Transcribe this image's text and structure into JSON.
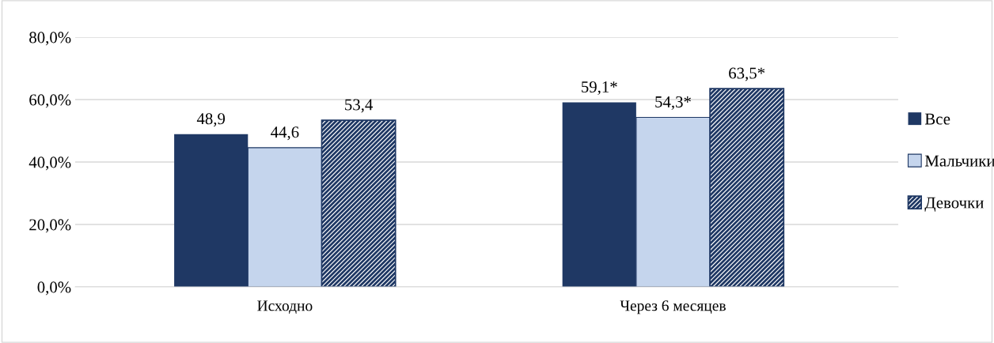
{
  "chart_data": {
    "type": "bar",
    "categories": [
      "Исходно",
      "Через 6 месяцев"
    ],
    "series": [
      {
        "name": "Все",
        "color": "#1f3864",
        "values": [
          48.9,
          59.1
        ],
        "value_labels": [
          "48,9",
          "59,1*"
        ]
      },
      {
        "name": "Мальчики",
        "color": "#c5d5ed",
        "values": [
          44.6,
          54.3
        ],
        "value_labels": [
          "44,6",
          "54,3*"
        ]
      },
      {
        "name": "Девочки",
        "color": "#1f3864",
        "values": [
          53.4,
          63.5
        ],
        "value_labels": [
          "53,4",
          "63,5*"
        ]
      }
    ],
    "ylim": [
      0,
      80
    ],
    "yticks": [
      {
        "value": 0,
        "label": "0,0%"
      },
      {
        "value": 20,
        "label": "20,0%"
      },
      {
        "value": 40,
        "label": "40,0%"
      },
      {
        "value": 60,
        "label": "60,0%"
      },
      {
        "value": 80,
        "label": "80,0%"
      }
    ],
    "grid": "y",
    "legend": "right"
  }
}
